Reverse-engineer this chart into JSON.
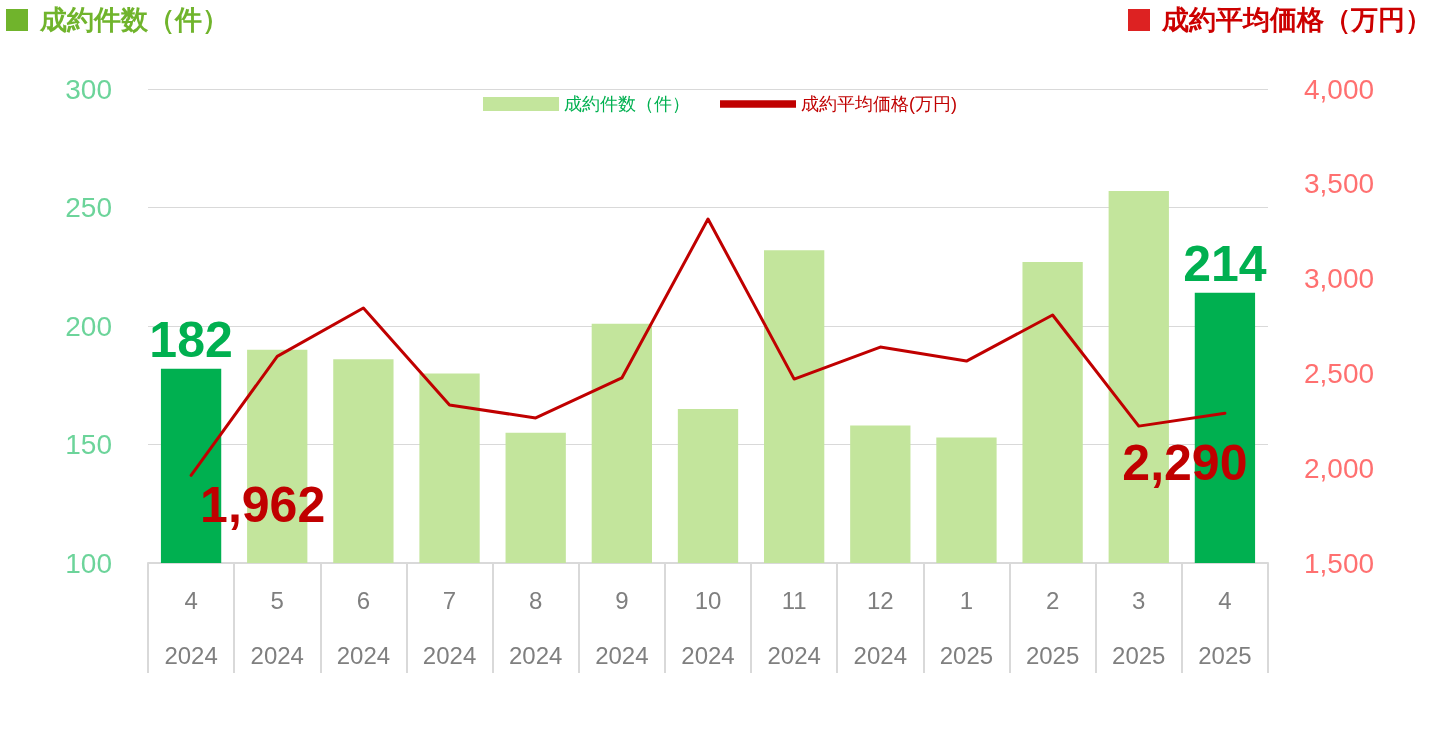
{
  "chart_data": {
    "type": "bar",
    "ylabel": "成約件数（件）",
    "y2label": "成約平均価格（万円）",
    "categories": [
      "4\n2024",
      "5\n2024",
      "6\n2024",
      "7\n2024",
      "8\n2024",
      "9\n2024",
      "10\n2024",
      "11\n2024",
      "12\n2024",
      "1\n2025",
      "2\n2025",
      "3\n2025",
      "4\n2025"
    ],
    "series": [
      {
        "name": "成約件数（件）",
        "color": "#c3e59c",
        "colors": [
          "#00b050",
          "#c3e59c",
          "#c3e59c",
          "#c3e59c",
          "#c3e59c",
          "#c3e59c",
          "#c3e59c",
          "#c3e59c",
          "#c3e59c",
          "#c3e59c",
          "#c3e59c",
          "#c3e59c",
          "#00b050"
        ],
        "values": [
          182,
          190,
          186,
          180,
          155,
          201,
          165,
          232,
          158,
          153,
          227,
          257,
          214
        ],
        "value_labels": [
          "182",
          null,
          null,
          null,
          null,
          null,
          null,
          null,
          null,
          null,
          null,
          null,
          "214"
        ]
      },
      {
        "name": "成約平均価格(万円)",
        "type": "line",
        "axis": "y2",
        "color": "#c00000",
        "values": [
          1962,
          2590,
          2845,
          2333,
          2265,
          2476,
          3314,
          2470,
          2639,
          2565,
          2808,
          2222,
          2290
        ],
        "value_labels": [
          "1,962",
          null,
          null,
          null,
          null,
          null,
          null,
          null,
          null,
          null,
          null,
          null,
          "2,290"
        ]
      }
    ],
    "ylim": [
      100,
      300
    ],
    "yticks": [
      100,
      150,
      200,
      250,
      300
    ],
    "y2lim": [
      1500,
      4000
    ],
    "y2ticks": [
      {
        "value": 1500,
        "label": "1,500"
      },
      {
        "value": 2000,
        "label": "2,000"
      },
      {
        "value": 2500,
        "label": "2,500"
      },
      {
        "value": 3000,
        "label": "3,000"
      },
      {
        "value": 3500,
        "label": "3,500"
      },
      {
        "value": 4000,
        "label": "4,000"
      }
    ],
    "grid": "y",
    "legend": "top",
    "marker": "none",
    "line_style": "solid"
  }
}
